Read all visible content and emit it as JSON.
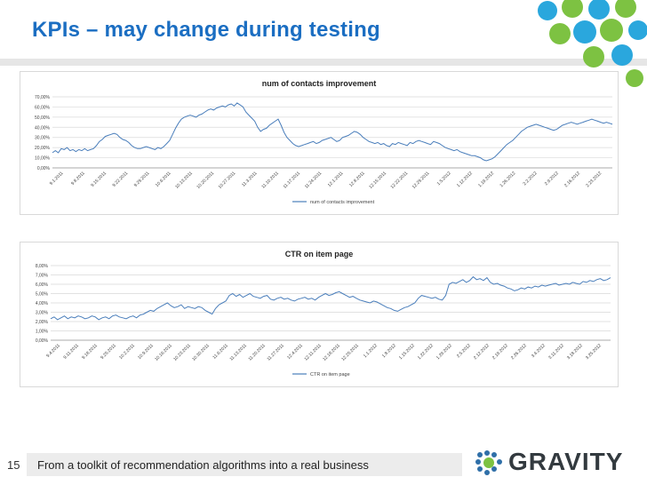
{
  "slide": {
    "title": "KPIs – may change during testing",
    "footer": "From a toolkit of recommendation algorithms into a real business",
    "page_number": "15",
    "logo_text": "GRAVITY",
    "colors": {
      "title": "#1b6ec2",
      "series": "#4a7ebb",
      "dots_green": "#7dc242",
      "dots_blue": "#2aa7dd"
    }
  },
  "chart_data": [
    {
      "type": "line",
      "title": "num of contacts improvement",
      "ylim": [
        0,
        70
      ],
      "yticks": [
        "0,00%",
        "10,00%",
        "20,00%",
        "30,00%",
        "40,00%",
        "50,00%",
        "60,00%",
        "70,00%"
      ],
      "xticks": [
        "9.1.2011",
        "9.8.2011",
        "9.15.2011",
        "9.22.2011",
        "9.29.2011",
        "10.6.2011",
        "10.13.2011",
        "10.20.2011",
        "10.27.2011",
        "11.3.2011",
        "11.10.2011",
        "11.17.2011",
        "11.24.2011",
        "12.1.2011",
        "12.8.2011",
        "12.15.2011",
        "12.22.2011",
        "12.29.2011",
        "1.5.2012",
        "1.12.2012",
        "1.19.2012",
        "1.26.2012",
        "2.2.2012",
        "2.9.2012",
        "2.16.2012",
        "2.23.2012"
      ],
      "legend": "num of contacts improvement",
      "grid": true,
      "series": [
        {
          "name": "num of contacts improvement",
          "values": [
            15,
            17,
            15,
            19,
            18,
            20,
            17,
            18,
            16,
            18,
            17,
            19,
            17,
            18,
            19,
            22,
            26,
            28,
            31,
            32,
            33,
            34,
            33,
            30,
            28,
            27,
            25,
            22,
            20,
            19,
            19,
            20,
            21,
            20,
            19,
            18,
            20,
            19,
            21,
            24,
            27,
            33,
            39,
            44,
            48,
            50,
            51,
            52,
            51,
            50,
            52,
            53,
            55,
            57,
            58,
            57,
            59,
            60,
            61,
            60,
            62,
            63,
            61,
            64,
            62,
            60,
            55,
            52,
            49,
            46,
            40,
            36,
            38,
            39,
            42,
            44,
            46,
            48,
            42,
            35,
            30,
            27,
            24,
            22,
            21,
            22,
            23,
            24,
            25,
            26,
            24,
            25,
            27,
            28,
            29,
            30,
            28,
            26,
            27,
            30,
            31,
            32,
            34,
            36,
            35,
            33,
            30,
            28,
            26,
            25,
            24,
            25,
            23,
            24,
            22,
            21,
            24,
            23,
            25,
            24,
            23,
            22,
            25,
            24,
            26,
            27,
            26,
            25,
            24,
            23,
            26,
            25,
            24,
            22,
            20,
            19,
            18,
            17,
            18,
            16,
            15,
            14,
            13,
            12,
            12,
            11,
            10,
            8,
            7,
            8,
            9,
            11,
            14,
            17,
            20,
            23,
            25,
            27,
            30,
            33,
            36,
            38,
            40,
            41,
            42,
            43,
            42,
            41,
            40,
            39,
            38,
            37,
            38,
            40,
            42,
            43,
            44,
            45,
            44,
            43,
            44,
            45,
            46,
            47,
            48,
            47,
            46,
            45,
            44,
            45,
            44,
            43
          ]
        }
      ]
    },
    {
      "type": "line",
      "title": "CTR on item page",
      "ylim": [
        0,
        8
      ],
      "yticks": [
        "0,00%",
        "1,00%",
        "2,00%",
        "3,00%",
        "4,00%",
        "5,00%",
        "6,00%",
        "7,00%",
        "8,00%"
      ],
      "xticks": [
        "9.4.2011",
        "9.11.2011",
        "9.18.2011",
        "9.25.2011",
        "10.2.2011",
        "10.9.2011",
        "10.16.2011",
        "10.23.2011",
        "10.30.2011",
        "11.6.2011",
        "11.13.2011",
        "11.20.2011",
        "11.27.2011",
        "12.4.2011",
        "12.11.2011",
        "12.18.2011",
        "12.25.2011",
        "1.1.2012",
        "1.8.2012",
        "1.15.2012",
        "1.22.2012",
        "1.29.2012",
        "2.5.2012",
        "2.12.2012",
        "2.19.2012",
        "2.26.2012",
        "3.4.2012",
        "3.11.2012",
        "3.18.2012",
        "3.25.2012"
      ],
      "legend": "CTR on item page",
      "grid": true,
      "series": [
        {
          "name": "CTR on item page",
          "values": [
            2.3,
            2.5,
            2.2,
            2.4,
            2.6,
            2.3,
            2.5,
            2.4,
            2.6,
            2.5,
            2.3,
            2.4,
            2.6,
            2.5,
            2.2,
            2.4,
            2.5,
            2.3,
            2.6,
            2.7,
            2.5,
            2.4,
            2.3,
            2.5,
            2.6,
            2.4,
            2.7,
            2.8,
            3.0,
            3.2,
            3.1,
            3.4,
            3.6,
            3.8,
            4.0,
            3.7,
            3.5,
            3.6,
            3.8,
            3.4,
            3.6,
            3.5,
            3.4,
            3.6,
            3.5,
            3.2,
            3.0,
            2.8,
            3.4,
            3.8,
            4.0,
            4.2,
            4.8,
            5.0,
            4.7,
            4.9,
            4.6,
            4.8,
            5.0,
            4.7,
            4.6,
            4.5,
            4.7,
            4.8,
            4.4,
            4.3,
            4.5,
            4.6,
            4.4,
            4.5,
            4.3,
            4.2,
            4.4,
            4.5,
            4.6,
            4.4,
            4.5,
            4.3,
            4.6,
            4.8,
            5.0,
            4.8,
            4.9,
            5.1,
            5.2,
            5.0,
            4.8,
            4.6,
            4.7,
            4.5,
            4.3,
            4.2,
            4.1,
            4.0,
            4.2,
            4.1,
            3.9,
            3.7,
            3.5,
            3.4,
            3.2,
            3.1,
            3.3,
            3.5,
            3.6,
            3.8,
            4.0,
            4.5,
            4.8,
            4.7,
            4.6,
            4.5,
            4.6,
            4.4,
            4.3,
            4.8,
            6.0,
            6.2,
            6.1,
            6.3,
            6.5,
            6.2,
            6.4,
            6.8,
            6.5,
            6.6,
            6.4,
            6.7,
            6.2,
            6.0,
            6.1,
            5.9,
            5.8,
            5.6,
            5.5,
            5.3,
            5.4,
            5.6,
            5.5,
            5.7,
            5.6,
            5.8,
            5.7,
            5.9,
            5.8,
            5.9,
            6.0,
            6.1,
            5.9,
            6.0,
            6.1,
            6.0,
            6.2,
            6.1,
            6.0,
            6.3,
            6.2,
            6.4,
            6.3,
            6.5,
            6.6,
            6.4,
            6.5,
            6.7
          ]
        }
      ]
    }
  ]
}
